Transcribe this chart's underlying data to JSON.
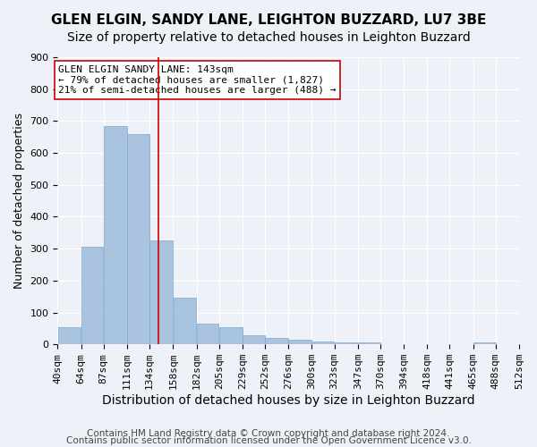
{
  "title": "GLEN ELGIN, SANDY LANE, LEIGHTON BUZZARD, LU7 3BE",
  "subtitle": "Size of property relative to detached houses in Leighton Buzzard",
  "xlabel": "Distribution of detached houses by size in Leighton Buzzard",
  "ylabel": "Number of detached properties",
  "footer_line1": "Contains HM Land Registry data © Crown copyright and database right 2024.",
  "footer_line2": "Contains public sector information licensed under the Open Government Licence v3.0.",
  "annotation_line1": "GLEN ELGIN SANDY LANE: 143sqm",
  "annotation_line2": "← 79% of detached houses are smaller (1,827)",
  "annotation_line3": "21% of semi-detached houses are larger (488) →",
  "bar_color": "#aac4e0",
  "bar_edge_color": "#7aaad0",
  "vline_color": "#cc0000",
  "vline_x": 143,
  "bin_edges": [
    40,
    64,
    87,
    111,
    134,
    158,
    182,
    205,
    229,
    252,
    276,
    300,
    323,
    347,
    370,
    394,
    418,
    441,
    465,
    488,
    512
  ],
  "bar_heights": [
    55,
    305,
    685,
    660,
    325,
    145,
    65,
    55,
    28,
    20,
    14,
    8,
    5,
    7,
    2,
    1,
    0,
    0,
    6,
    0
  ],
  "ylim": [
    0,
    900
  ],
  "yticks": [
    0,
    100,
    200,
    300,
    400,
    500,
    600,
    700,
    800,
    900
  ],
  "bg_color": "#eef2f8",
  "plot_bg_color": "#eef2f8",
  "grid_color": "#ffffff",
  "title_fontsize": 11,
  "subtitle_fontsize": 10,
  "xlabel_fontsize": 10,
  "ylabel_fontsize": 9,
  "tick_fontsize": 8,
  "annotation_fontsize": 8,
  "footer_fontsize": 7.5
}
